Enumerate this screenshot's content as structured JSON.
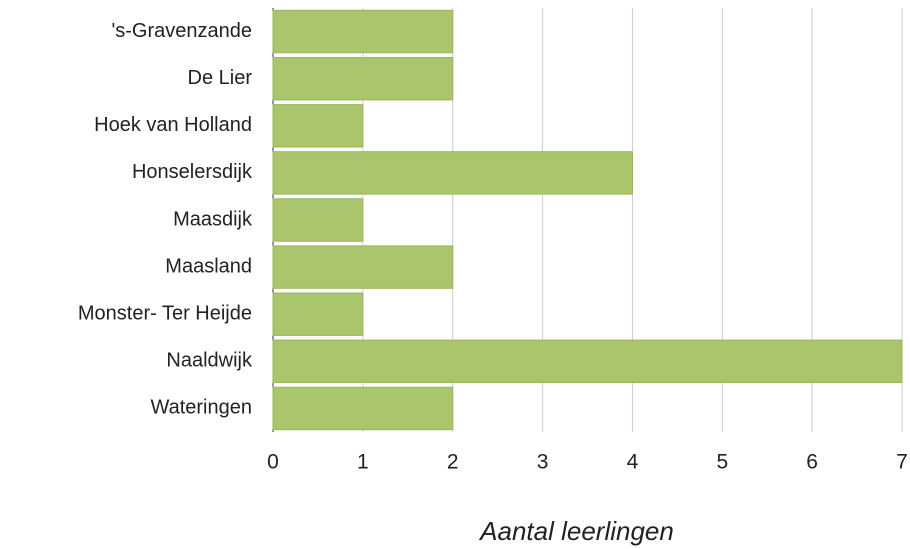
{
  "chart_data": {
    "type": "bar",
    "orientation": "horizontal",
    "categories": [
      "'s-Gravenzande",
      "De Lier",
      "Hoek van Holland",
      "Honselersdijk",
      "Maasdijk",
      "Maasland",
      "Monster- Ter Heijde",
      "Naaldwijk",
      "Wateringen"
    ],
    "values": [
      2,
      2,
      1,
      4,
      1,
      2,
      1,
      7,
      2
    ],
    "color": "#a9c66d",
    "x_label": "Aantal leerlingen",
    "xlim": [
      0,
      7
    ],
    "xticks": [
      0,
      1,
      2,
      3,
      4,
      5,
      6,
      7
    ],
    "grid": true
  }
}
